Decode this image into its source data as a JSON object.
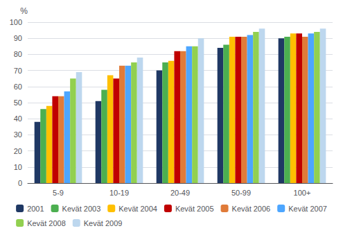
{
  "chart_data": {
    "type": "bar",
    "ylabel": "%",
    "categories": [
      "5-9",
      "10-19",
      "20-49",
      "50-99",
      "100+"
    ],
    "series": [
      {
        "name": "2001",
        "color": "#1F3864",
        "values": [
          38,
          51,
          70,
          84,
          90
        ]
      },
      {
        "name": "Kevät 2003",
        "color": "#4CAF50",
        "values": [
          46,
          58,
          75,
          86,
          91
        ]
      },
      {
        "name": "Kevät 2004",
        "color": "#FFC000",
        "values": [
          48,
          67,
          76,
          91,
          93
        ]
      },
      {
        "name": "Kevät 2005",
        "color": "#C00000",
        "values": [
          54,
          65,
          82,
          91,
          93
        ]
      },
      {
        "name": "Kevät 2006",
        "color": "#E07B39",
        "values": [
          54,
          73,
          82,
          91,
          91
        ]
      },
      {
        "name": "Kevät 2007",
        "color": "#4DA6FF",
        "values": [
          57,
          73,
          85,
          92,
          93
        ]
      },
      {
        "name": "Kevät 2008",
        "color": "#92D050",
        "values": [
          65,
          75,
          85,
          94,
          94
        ]
      },
      {
        "name": "Kevät 2009",
        "color": "#BDD7EE",
        "values": [
          69,
          78,
          90,
          96,
          96
        ]
      }
    ],
    "ylim": [
      0,
      100
    ],
    "yticks": [
      0,
      10,
      20,
      30,
      40,
      50,
      60,
      70,
      80,
      90,
      100
    ],
    "grid": true,
    "legend": "bottom"
  }
}
